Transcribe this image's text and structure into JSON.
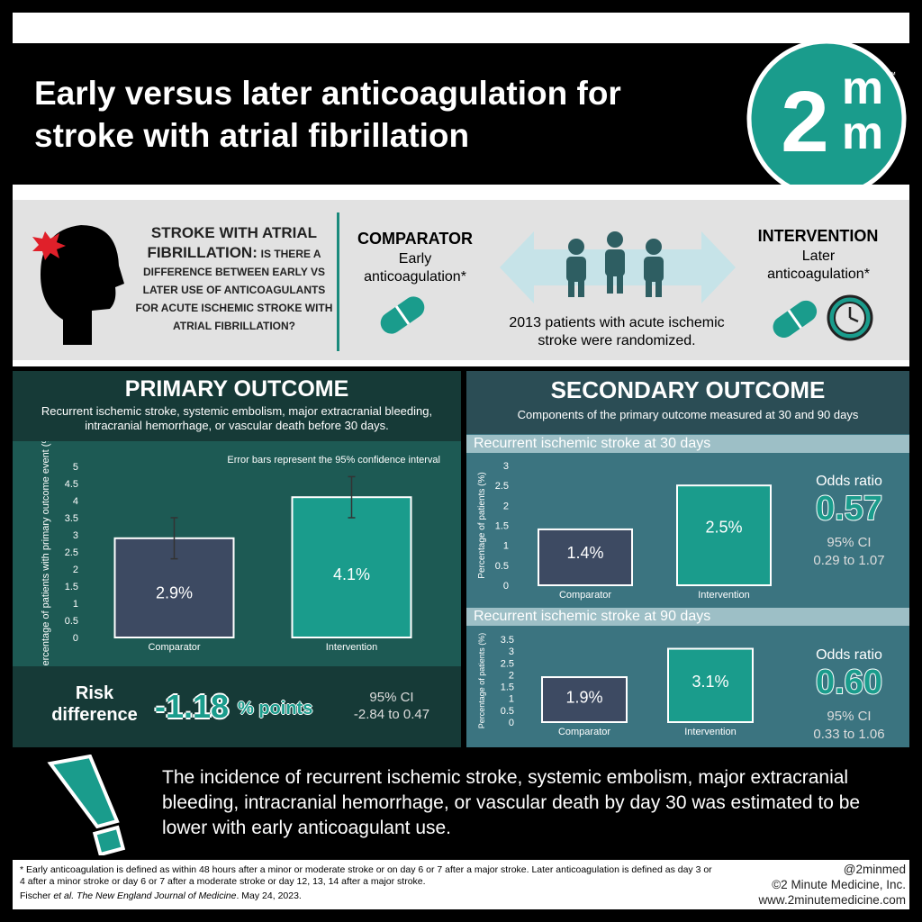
{
  "header": {
    "title": "Early versus later anticoagulation for stroke with atrial fibrillation",
    "logo": {
      "digit": "2",
      "letters": [
        "m",
        "m"
      ],
      "mark": "™"
    }
  },
  "background": {
    "question_lead": "STROKE WITH ATRIAL FIBRILLATION:",
    "question_rest": "IS THERE A DIFFERENCE BETWEEN EARLY VS LATER USE OF ANTICOAGULANTS FOR ACUTE ISCHEMIC STROKE WITH ATRIAL FIBRILLATION?",
    "comparator": {
      "heading": "COMPARATOR",
      "text": "Early anticoagulation*"
    },
    "intervention": {
      "heading": "INTERVENTION",
      "text": "Later anticoagulation*"
    },
    "population": "2013 patients with acute ischemic stroke were randomized."
  },
  "primary": {
    "heading": "PRIMARY OUTCOME",
    "description": "Recurrent ischemic stroke, systemic embolism, major extracranial bleeding, intracranial hemorrhage, or vascular death before 30 days.",
    "chart": {
      "type": "bar",
      "note": "Error bars represent the 95% confidence interval",
      "y_label": "Percentage of patients with primary outcome event (%)",
      "categories": [
        "Comparator",
        "Intervention"
      ],
      "colors": [
        "#3d4a62",
        "#1a9c8c"
      ],
      "values": [
        2.9,
        4.1
      ],
      "value_labels": [
        "2.9%",
        "4.1%"
      ],
      "ci_low": [
        2.3,
        3.5
      ],
      "ci_high": [
        3.5,
        4.7
      ],
      "ylim": [
        0,
        5
      ],
      "yticks": [
        0,
        0.5,
        1,
        1.5,
        2,
        2.5,
        3,
        3.5,
        4,
        4.5,
        5
      ]
    },
    "risk_difference": {
      "label": "Risk difference",
      "value": "-1.18",
      "unit": "% points",
      "ci_label": "95% CI",
      "ci": "-2.84 to 0.47"
    }
  },
  "secondary": {
    "heading": "SECONDARY OUTCOME",
    "description": "Components of the primary outcome measured at 30 and 90 days",
    "charts": [
      {
        "type": "bar",
        "title": "Recurrent ischemic stroke at 30 days",
        "y_label": "Percentage of patients (%)",
        "categories": [
          "Comparator",
          "Intervention"
        ],
        "colors": [
          "#3d4a62",
          "#1a9c8c"
        ],
        "values": [
          1.4,
          2.5
        ],
        "value_labels": [
          "1.4%",
          "2.5%"
        ],
        "ylim": [
          0,
          3
        ],
        "yticks": [
          0,
          0.5,
          1,
          1.5,
          2,
          2.5,
          3
        ],
        "odds_ratio": {
          "label": "Odds ratio",
          "value": "0.57",
          "ci_label": "95% CI",
          "ci": "0.29 to 1.07"
        }
      },
      {
        "type": "bar",
        "title": "Recurrent ischemic stroke at 90 days",
        "y_label": "Percentage of patients (%)",
        "categories": [
          "Comparator",
          "Intervention"
        ],
        "colors": [
          "#3d4a62",
          "#1a9c8c"
        ],
        "values": [
          1.9,
          3.1
        ],
        "value_labels": [
          "1.9%",
          "3.1%"
        ],
        "ylim": [
          0,
          3.5
        ],
        "yticks": [
          0,
          0.5,
          1,
          1.5,
          2,
          2.5,
          3,
          3.5
        ],
        "odds_ratio": {
          "label": "Odds ratio",
          "value": "0.60",
          "ci_label": "95% CI",
          "ci": "0.33 to 1.06"
        }
      }
    ]
  },
  "conclusion": "The incidence of recurrent ischemic stroke, systemic embolism, major extracranial bleeding, intracranial hemorrhage, or vascular death by day 30 was estimated to be lower with early anticoagulant use.",
  "footer": {
    "footnote": "* Early anticoagulation is defined as within 48 hours after a minor or moderate stroke or on day 6 or 7 after a major stroke. Later anticoagulation is defined as day 3 or 4 after a minor stroke or day 6 or 7 after a moderate stroke or day 12, 13, 14 after a major stroke.",
    "citation": [
      "Fischer ",
      "et al.",
      " The New England Journal of Medicine",
      ". May 24, 2023."
    ],
    "credits": [
      "@2minmed",
      "©2 Minute Medicine, Inc.",
      "www.2minutemedicine.com"
    ]
  }
}
